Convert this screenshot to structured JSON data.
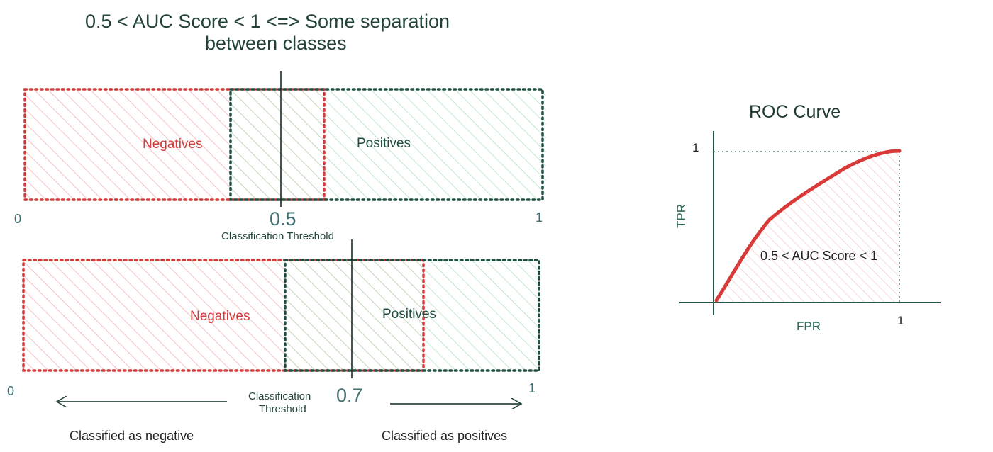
{
  "title": {
    "line1": "0.5 < AUC Score < 1 <=> Some separation",
    "line2": "between classes"
  },
  "panel_top": {
    "negatives_label": "Negatives",
    "positives_label": "Positives",
    "tick_0": "0",
    "tick_1": "1",
    "threshold_value": "0.5",
    "threshold_caption": "Classification Threshold"
  },
  "panel_bottom": {
    "negatives_label": "Negatives",
    "positives_label": "Positives",
    "tick_0": "0",
    "tick_1": "1",
    "threshold_value": "0.7",
    "threshold_caption_line1": "Classification",
    "threshold_caption_line2": "Threshold",
    "classified_negative": "Classified as negative",
    "classified_positive": "Classified as positives"
  },
  "roc": {
    "title": "ROC Curve",
    "y_label": "TPR",
    "x_label": "FPR",
    "y_tick": "1",
    "x_tick": "1",
    "auc_label": "0.5 < AUC Score < 1"
  },
  "colors": {
    "negative": "#d33a3a",
    "positive": "#1f4f42",
    "neg_hatch": "#f2b3b3",
    "pos_hatch": "#b6e2bf",
    "curve": "#d83a3a"
  }
}
